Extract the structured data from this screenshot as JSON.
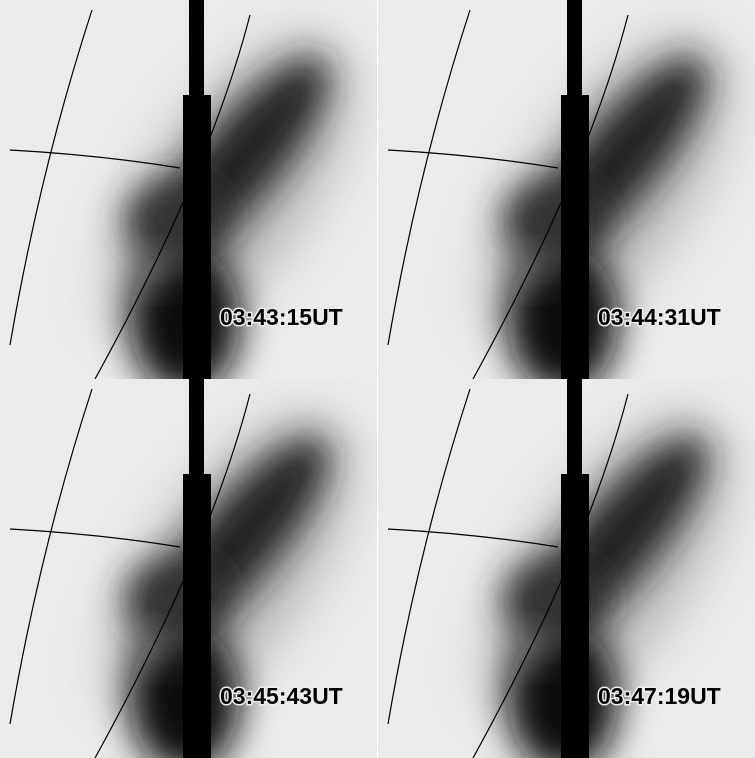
{
  "panels": [
    {
      "label": "03:43:15UT"
    },
    {
      "label": "03:44:31UT"
    },
    {
      "label": "03:45:43UT"
    },
    {
      "label": "03:47:19UT"
    }
  ]
}
